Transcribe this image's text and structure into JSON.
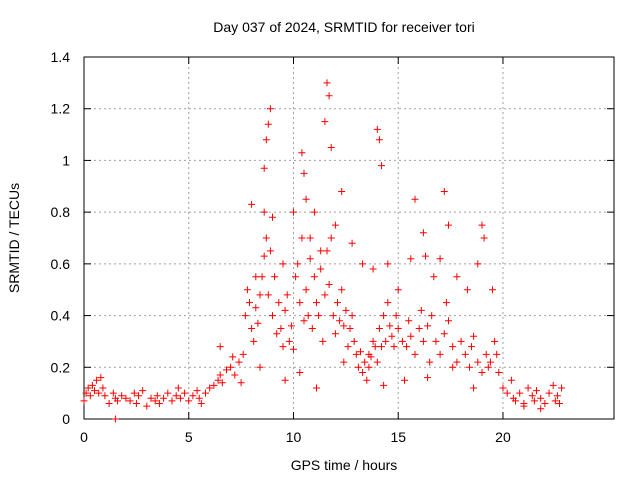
{
  "chart_data": {
    "type": "scatter",
    "title": "Day 037 of 2024, SRMTID for receiver tori",
    "xlabel": "GPS time / hours",
    "ylabel": "SRMTID / TECUs",
    "xlim": [
      0,
      25.3
    ],
    "ylim": [
      0,
      1.4
    ],
    "x_ticks": [
      0,
      5,
      10,
      15,
      20
    ],
    "x_tick_labels": [
      "0",
      "5",
      "10",
      "15",
      "20"
    ],
    "y_ticks": [
      0,
      0.2,
      0.4,
      0.6,
      0.8,
      1.0,
      1.2,
      1.4
    ],
    "y_tick_labels": [
      "0",
      "0.2",
      "0.4",
      "0.6",
      "0.8",
      "1",
      "1.2",
      "1.4"
    ],
    "grid": true,
    "marker": "plus",
    "color": "#ff0000",
    "series": [
      {
        "name": "SRMTID",
        "x": [
          0.0,
          0.1,
          0.2,
          0.3,
          0.4,
          0.5,
          0.6,
          0.7,
          0.8,
          0.9,
          1.0,
          1.2,
          1.4,
          1.5,
          1.6,
          1.8,
          2.0,
          2.2,
          2.4,
          2.5,
          2.6,
          2.8,
          3.0,
          3.2,
          3.4,
          3.5,
          3.6,
          3.8,
          4.0,
          4.2,
          4.4,
          4.5,
          4.6,
          4.8,
          5.0,
          5.2,
          5.4,
          5.5,
          5.6,
          5.8,
          6.0,
          6.2,
          6.4,
          6.5,
          6.6,
          6.8,
          7.0,
          7.2,
          7.4,
          7.5,
          7.6,
          7.7,
          7.8,
          7.9,
          8.0,
          8.1,
          8.2,
          8.3,
          8.4,
          8.5,
          8.6,
          8.7,
          8.8,
          8.9,
          9.0,
          9.1,
          9.2,
          9.3,
          9.4,
          9.5,
          9.6,
          9.7,
          9.8,
          9.9,
          10.0,
          10.1,
          10.2,
          10.3,
          10.4,
          10.5,
          10.6,
          10.7,
          10.8,
          10.9,
          11.0,
          11.1,
          11.2,
          11.3,
          11.4,
          11.5,
          11.6,
          11.7,
          11.8,
          11.9,
          12.0,
          12.1,
          12.2,
          12.3,
          12.4,
          12.5,
          12.6,
          12.7,
          12.8,
          12.9,
          13.0,
          13.1,
          13.2,
          13.3,
          13.4,
          13.5,
          13.6,
          13.7,
          13.8,
          13.9,
          14.0,
          14.1,
          14.2,
          14.3,
          14.4,
          14.5,
          14.6,
          14.7,
          14.8,
          14.9,
          15.0,
          15.2,
          15.4,
          15.5,
          15.6,
          15.8,
          16.0,
          16.1,
          16.2,
          16.4,
          16.5,
          16.6,
          16.8,
          17.0,
          17.2,
          17.3,
          17.4,
          17.6,
          17.8,
          18.0,
          18.2,
          18.4,
          18.5,
          18.6,
          18.8,
          19.0,
          19.2,
          19.3,
          19.4,
          19.6,
          19.8,
          20.0,
          20.2,
          20.4,
          20.5,
          20.6,
          20.8,
          21.0,
          21.2,
          21.4,
          21.5,
          21.6,
          21.8,
          22.0,
          22.2,
          22.4,
          22.5,
          22.6,
          22.8,
          8.9,
          8.8,
          8.7,
          8.6,
          8.6,
          10.4,
          10.5,
          10.6,
          11.0,
          11.6,
          11.7,
          11.5,
          11.8,
          12.3,
          14.0,
          14.1,
          14.2,
          15.8,
          16.2,
          16.3,
          17.2,
          17.4,
          19.0,
          19.1,
          8.0,
          8.2,
          9.0,
          9.5,
          10.0,
          10.8,
          11.3,
          12.0,
          12.8,
          13.3,
          13.8,
          14.5,
          15.0,
          15.6,
          16.7,
          17.0,
          17.8,
          18.3,
          18.8,
          19.5,
          1.5,
          6.5,
          7.1,
          8.4,
          9.6,
          10.3,
          11.1,
          12.4,
          13.6,
          14.3,
          15.3,
          16.4,
          17.6,
          18.6,
          19.7,
          21.0,
          21.8,
          22.7
        ],
        "y": [
          0.07,
          0.1,
          0.12,
          0.09,
          0.13,
          0.11,
          0.15,
          0.1,
          0.16,
          0.12,
          0.09,
          0.06,
          0.1,
          0.08,
          0.07,
          0.09,
          0.08,
          0.07,
          0.1,
          0.06,
          0.09,
          0.11,
          0.05,
          0.08,
          0.07,
          0.09,
          0.06,
          0.08,
          0.1,
          0.07,
          0.09,
          0.12,
          0.08,
          0.1,
          0.07,
          0.09,
          0.11,
          0.08,
          0.06,
          0.1,
          0.12,
          0.13,
          0.15,
          0.17,
          0.14,
          0.19,
          0.2,
          0.17,
          0.22,
          0.14,
          0.25,
          0.4,
          0.5,
          0.45,
          0.35,
          0.3,
          0.43,
          0.37,
          0.48,
          0.55,
          0.63,
          0.7,
          0.48,
          0.65,
          0.4,
          0.55,
          0.33,
          0.45,
          0.35,
          0.28,
          0.42,
          0.48,
          0.3,
          0.36,
          0.27,
          0.55,
          0.6,
          0.45,
          0.7,
          0.38,
          0.5,
          0.4,
          0.62,
          0.35,
          0.55,
          0.45,
          0.4,
          0.58,
          0.3,
          0.48,
          0.65,
          0.52,
          0.7,
          0.4,
          0.33,
          0.45,
          0.38,
          0.5,
          0.36,
          0.42,
          0.28,
          0.35,
          0.4,
          0.3,
          0.25,
          0.2,
          0.26,
          0.18,
          0.22,
          0.15,
          0.2,
          0.24,
          0.3,
          0.28,
          0.22,
          0.35,
          0.28,
          0.4,
          0.3,
          0.45,
          0.36,
          0.32,
          0.28,
          0.4,
          0.35,
          0.3,
          0.28,
          0.38,
          0.32,
          0.25,
          0.35,
          0.42,
          0.3,
          0.36,
          0.22,
          0.4,
          0.3,
          0.25,
          0.33,
          0.45,
          0.38,
          0.28,
          0.22,
          0.3,
          0.25,
          0.2,
          0.28,
          0.32,
          0.22,
          0.18,
          0.25,
          0.2,
          0.22,
          0.3,
          0.18,
          0.12,
          0.1,
          0.15,
          0.08,
          0.07,
          0.1,
          0.06,
          0.12,
          0.09,
          0.07,
          0.11,
          0.08,
          0.06,
          0.1,
          0.13,
          0.07,
          0.09,
          0.12,
          1.2,
          1.14,
          1.08,
          0.97,
          0.8,
          1.03,
          0.95,
          0.85,
          0.8,
          1.3,
          1.25,
          1.15,
          1.05,
          0.88,
          1.12,
          1.08,
          0.98,
          0.85,
          0.72,
          0.63,
          0.88,
          0.75,
          0.75,
          0.7,
          0.83,
          0.55,
          0.78,
          0.6,
          0.8,
          0.7,
          0.65,
          0.75,
          0.68,
          0.6,
          0.58,
          0.6,
          0.5,
          0.62,
          0.55,
          0.62,
          0.55,
          0.5,
          0.6,
          0.5,
          0.0,
          0.28,
          0.24,
          0.2,
          0.15,
          0.18,
          0.12,
          0.22,
          0.25,
          0.13,
          0.15,
          0.16,
          0.2,
          0.12,
          0.25,
          0.05,
          0.04,
          0.06
        ]
      }
    ]
  }
}
